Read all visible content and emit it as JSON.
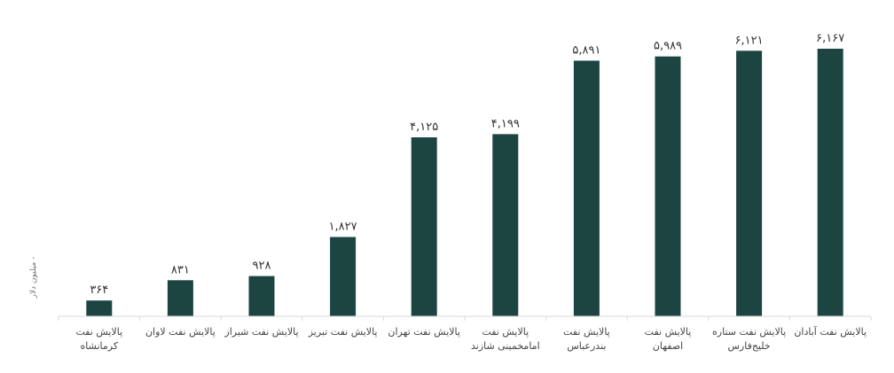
{
  "chart_data": {
    "type": "bar",
    "ylabel": "- میلیون دلار",
    "categories": [
      [
        "پالایش نفت",
        "کرمانشاه"
      ],
      [
        "پالایش نفت لاوان"
      ],
      [
        "پالایش نفت شیراز"
      ],
      [
        "پالایش نفت تبریز"
      ],
      [
        "پالایش نفت تهران"
      ],
      [
        "پالایش نفت",
        "امامخمینی شازند"
      ],
      [
        "پالایش نفت",
        "بندرعباس"
      ],
      [
        "پالایش نفت",
        "اصفهان"
      ],
      [
        "پالایش نفت ستاره",
        "خلیج‌فارس"
      ],
      [
        "پالایش نفت آبادان"
      ]
    ],
    "values": [
      364,
      831,
      928,
      1827,
      4125,
      4199,
      5891,
      5989,
      6121,
      6167
    ],
    "value_labels": [
      "۳۶۴",
      "۸۳۱",
      "۹۲۸",
      "۱,۸۲۷",
      "۴,۱۲۵",
      "۴,۱۹۹",
      "۵,۸۹۱",
      "۵,۹۸۹",
      "۶,۱۲۱",
      "۶,۱۶۷"
    ],
    "bar_color": "#1c4541",
    "axis_color": "#d9d9d9",
    "ylim": [
      0,
      6167
    ],
    "grid": false
  }
}
